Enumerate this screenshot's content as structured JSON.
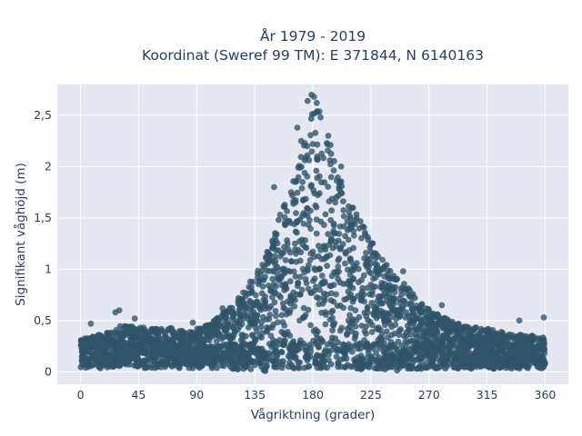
{
  "chart_data": {
    "type": "scatter",
    "title_lines": [
      "År 1979 - 2019",
      "Koordinat (Sweref 99 TM): E 371844, N 6140163"
    ],
    "xlabel": "Vågriktning (grader)",
    "ylabel": "Signifikant våghöjd (m)",
    "x_ticks": [
      0,
      45,
      90,
      135,
      180,
      225,
      270,
      315,
      360
    ],
    "x_tick_labels": [
      "0",
      "45",
      "90",
      "135",
      "180",
      "225",
      "270",
      "315",
      "360"
    ],
    "y_ticks": [
      0,
      0.5,
      1,
      1.5,
      2,
      2.5
    ],
    "y_tick_labels": [
      "0",
      "0,5",
      "1",
      "1,5",
      "2",
      "2,5"
    ],
    "xlim": [
      -18,
      378
    ],
    "ylim": [
      -0.12,
      2.8
    ],
    "grid": true,
    "marker_color": "#2f5369",
    "plot_background": "#e5e8f0",
    "envelope_upper": {
      "x": [
        0,
        20,
        30,
        45,
        60,
        75,
        90,
        100,
        110,
        120,
        130,
        140,
        150,
        155,
        160,
        165,
        170,
        175,
        180,
        185,
        190,
        195,
        200,
        205,
        210,
        220,
        230,
        240,
        250,
        260,
        270,
        280,
        290,
        300,
        315,
        330,
        345,
        360
      ],
      "y": [
        0.32,
        0.38,
        0.45,
        0.45,
        0.42,
        0.43,
        0.42,
        0.47,
        0.58,
        0.68,
        0.85,
        1.05,
        1.35,
        1.55,
        1.75,
        1.92,
        2.1,
        2.3,
        2.58,
        2.55,
        2.42,
        2.2,
        1.95,
        1.8,
        1.65,
        1.45,
        1.2,
        1.02,
        0.88,
        0.72,
        0.62,
        0.54,
        0.48,
        0.45,
        0.42,
        0.38,
        0.36,
        0.34
      ]
    },
    "envelope_lower": {
      "x": [
        0,
        90,
        140,
        180,
        225,
        270,
        360
      ],
      "y": [
        0.04,
        0.05,
        0.0,
        0.0,
        0.0,
        0.03,
        0.05
      ]
    },
    "outliers": [
      {
        "x": 179,
        "y": 2.7
      },
      {
        "x": 181,
        "y": 2.68
      },
      {
        "x": 183,
        "y": 2.62
      },
      {
        "x": 176,
        "y": 2.64
      },
      {
        "x": 171,
        "y": 2.25
      },
      {
        "x": 168,
        "y": 2.38
      },
      {
        "x": 186,
        "y": 2.48
      },
      {
        "x": 192,
        "y": 2.3
      },
      {
        "x": 202,
        "y": 2.0
      },
      {
        "x": 150,
        "y": 1.8
      },
      {
        "x": 27,
        "y": 0.58
      },
      {
        "x": 30,
        "y": 0.6
      },
      {
        "x": 8,
        "y": 0.47
      },
      {
        "x": 42,
        "y": 0.52
      },
      {
        "x": 87,
        "y": 0.48
      },
      {
        "x": 110,
        "y": 0.62
      },
      {
        "x": 250,
        "y": 0.98
      },
      {
        "x": 280,
        "y": 0.65
      },
      {
        "x": 340,
        "y": 0.5
      },
      {
        "x": 359,
        "y": 0.53
      }
    ]
  }
}
